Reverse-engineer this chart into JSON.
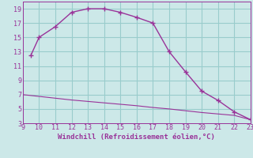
{
  "upper_x": [
    9.5,
    10,
    11,
    12,
    13,
    14,
    15,
    16,
    17,
    18,
    19,
    20,
    21,
    22,
    23
  ],
  "upper_y": [
    12.5,
    15,
    16.5,
    18.5,
    19,
    19,
    18.5,
    17.8,
    17,
    13,
    10.2,
    7.5,
    6.2,
    4.6,
    3.5
  ],
  "lower_x": [
    9,
    10,
    11,
    12,
    13,
    14,
    15,
    16,
    17,
    18,
    19,
    20,
    21,
    22,
    23
  ],
  "lower_y": [
    7.0,
    6.75,
    6.5,
    6.25,
    6.05,
    5.85,
    5.65,
    5.45,
    5.2,
    5.0,
    4.75,
    4.5,
    4.3,
    4.1,
    3.5
  ],
  "line_color": "#993399",
  "bg_color": "#cce8e8",
  "grid_color": "#99cccc",
  "xlabel": "Windchill (Refroidissement éolien,°C)",
  "xlim": [
    9,
    23
  ],
  "ylim": [
    3,
    20
  ],
  "xticks": [
    9,
    10,
    11,
    12,
    13,
    14,
    15,
    16,
    17,
    18,
    19,
    20,
    21,
    22,
    23
  ],
  "yticks": [
    3,
    5,
    7,
    9,
    11,
    13,
    15,
    17,
    19
  ],
  "marker": "+"
}
